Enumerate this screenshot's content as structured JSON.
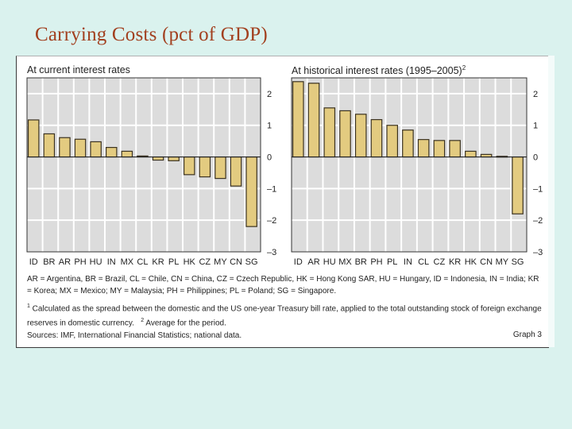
{
  "slide": {
    "title": "Carrying Costs (pct of GDP)"
  },
  "chart_data": [
    {
      "type": "bar",
      "title": "At current interest rates",
      "title_superscript": "",
      "categories": [
        "ID",
        "BR",
        "AR",
        "PH",
        "HU",
        "IN",
        "MX",
        "CL",
        "KR",
        "PL",
        "HK",
        "CZ",
        "MY",
        "CN",
        "SG"
      ],
      "values": [
        1.17,
        0.73,
        0.61,
        0.56,
        0.48,
        0.3,
        0.18,
        0.03,
        -0.1,
        -0.12,
        -0.56,
        -0.63,
        -0.68,
        -0.92,
        -2.2
      ],
      "xlabel": "",
      "ylabel": "",
      "ylim": [
        -3,
        2.5
      ],
      "yticks": [
        2,
        1,
        0,
        -1,
        -2,
        -3
      ],
      "ytick_labels": [
        "2",
        "1",
        "0",
        "–1",
        "–2",
        "–3"
      ],
      "y_axis_side": "right",
      "grid": true,
      "bar_color": "#e3cb80",
      "plot_background": "#dcdcdc"
    },
    {
      "type": "bar",
      "title": "At historical interest rates (1995–2005)",
      "title_superscript": "2",
      "categories": [
        "ID",
        "AR",
        "HU",
        "MX",
        "BR",
        "PH",
        "PL",
        "IN",
        "CL",
        "CZ",
        "KR",
        "HK",
        "CN",
        "MY",
        "SG"
      ],
      "values": [
        2.38,
        2.33,
        1.55,
        1.46,
        1.35,
        1.18,
        1.0,
        0.85,
        0.55,
        0.52,
        0.52,
        0.18,
        0.08,
        0.02,
        -1.8
      ],
      "xlabel": "",
      "ylabel": "",
      "ylim": [
        -3,
        2.5
      ],
      "yticks": [
        2,
        1,
        0,
        -1,
        -2,
        -3
      ],
      "ytick_labels": [
        "2",
        "1",
        "0",
        "–1",
        "–2",
        "–3"
      ],
      "y_axis_side": "right",
      "grid": true,
      "bar_color": "#e3cb80",
      "plot_background": "#dcdcdc"
    }
  ],
  "notes": {
    "abbreviations": "AR = Argentina, BR = Brazil, CL = Chile, CN = China, CZ = Czech Republic, HK = Hong Kong SAR, HU = Hungary, ID = Indonesia, IN = India; KR = Korea; MX = Mexico; MY = Malaysia; PH = Philippines; PL = Poland; SG = Singapore.",
    "footnote1_marker": "1",
    "footnote1": " Calculated as the spread between the domestic and the US one-year Treasury bill rate, applied to the total outstanding stock of foreign exchange reserves in domestic currency.",
    "footnote2_marker": "2",
    "footnote2": " Average for the period.",
    "sources": "Sources: IMF, International Financial Statistics; national data.",
    "graph_label": "Graph 3"
  }
}
